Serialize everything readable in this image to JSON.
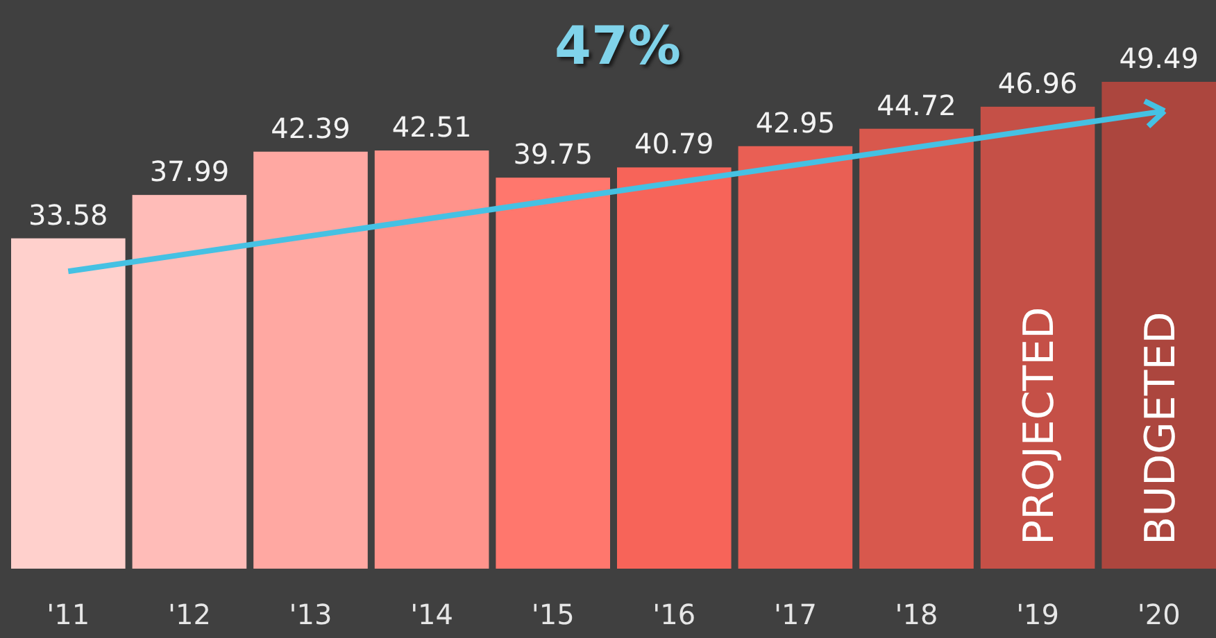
{
  "chart_data": {
    "type": "bar",
    "title": "47%",
    "categories": [
      "'11",
      "'12",
      "'13",
      "'14",
      "'15",
      "'16",
      "'17",
      "'18",
      "'19",
      "'20"
    ],
    "values": [
      33.58,
      37.99,
      42.39,
      42.51,
      39.75,
      40.79,
      42.95,
      44.72,
      46.96,
      49.49
    ],
    "colors": [
      "#ffd0cc",
      "#ffbcb8",
      "#ffa8a2",
      "#ff938b",
      "#ff776d",
      "#f76459",
      "#e95f54",
      "#d8584d",
      "#c55047",
      "#ac463e"
    ],
    "data_labels": true,
    "annotations": [
      "PROJECTED",
      "BUDGETED"
    ]
  }
}
